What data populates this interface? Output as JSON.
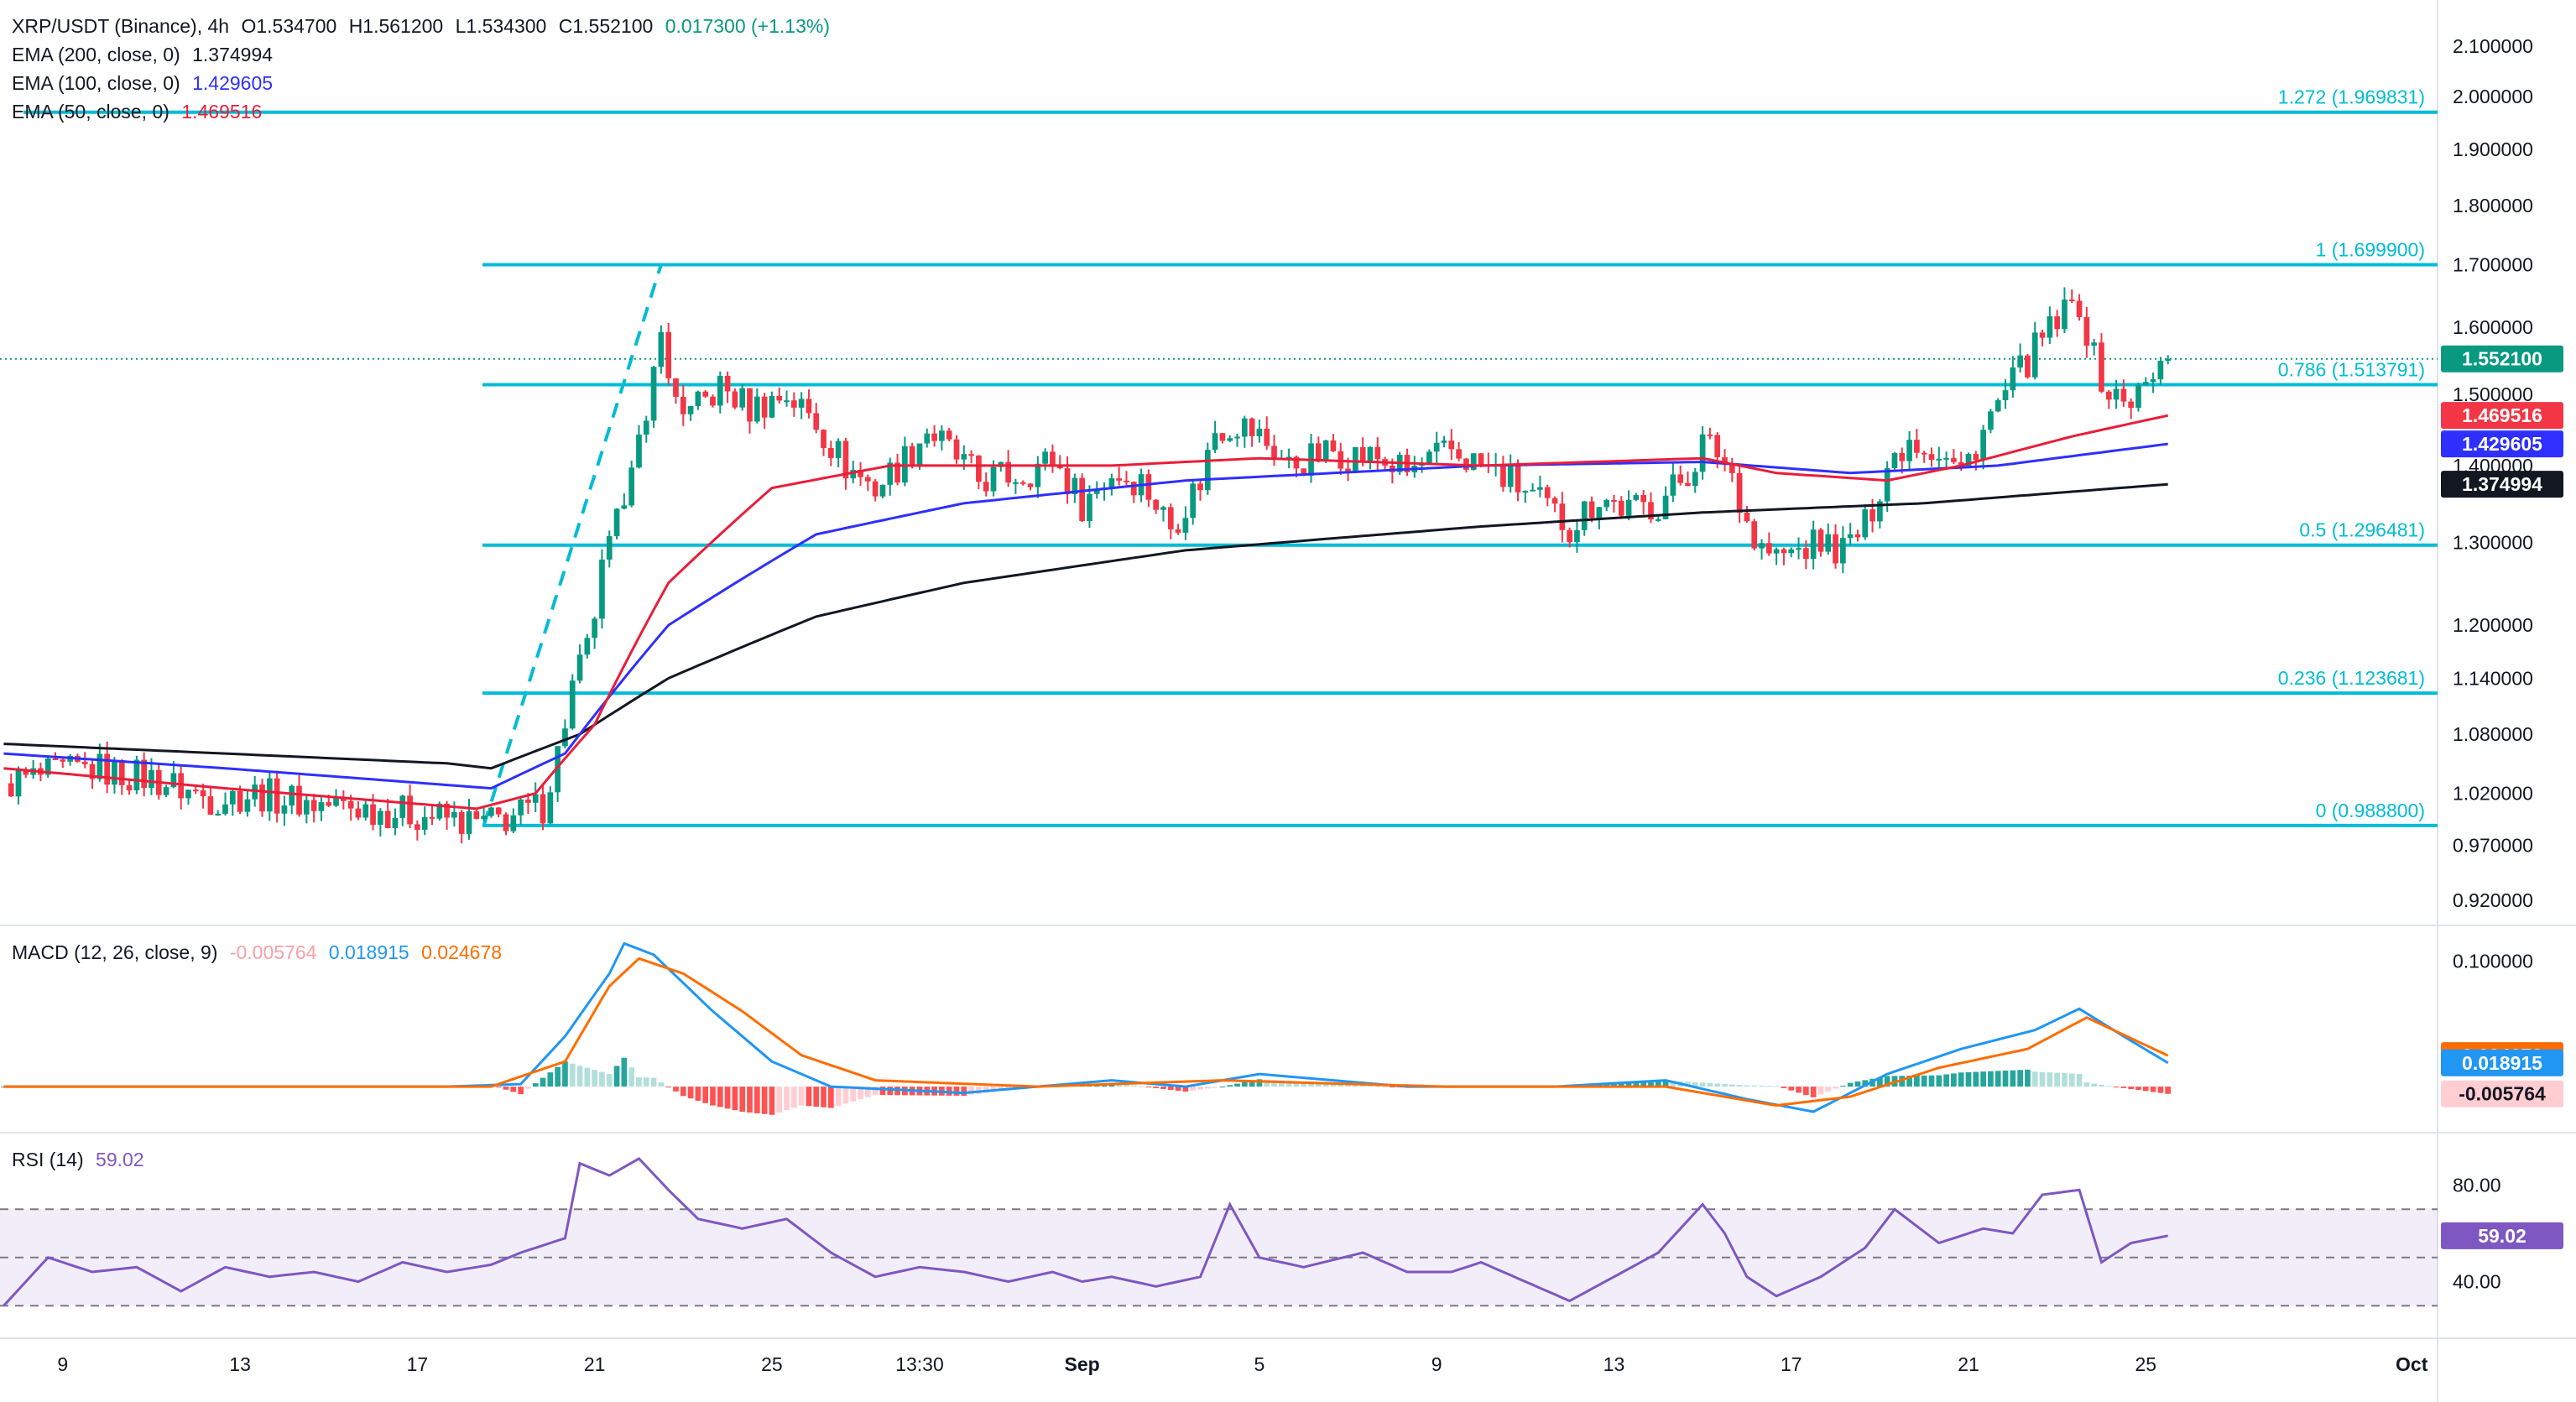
{
  "header": {
    "symbol": "XRP/USDT (Binance), 4h",
    "open": "O1.534700",
    "high": "H1.561200",
    "low": "L1.534300",
    "close": "C1.552100",
    "change": "0.017300 (+1.13%)"
  },
  "indicators": {
    "ema200": {
      "label": "EMA (200, close, 0)",
      "value": "1.374994",
      "color": "#131722"
    },
    "ema100": {
      "label": "EMA (100, close, 0)",
      "value": "1.429605",
      "color": "#2f2fff"
    },
    "ema50": {
      "label": "EMA (50, close, 0)",
      "value": "1.469516",
      "color": "#e91e3a"
    },
    "macd": {
      "label": "MACD (12, 26, close, 9)",
      "hist": "-0.005764",
      "macd": "0.018915",
      "signal": "0.024678"
    },
    "rsi": {
      "label": "RSI (14)",
      "value": "59.02"
    }
  },
  "colors": {
    "up": "#089981",
    "down": "#f23645",
    "fib": "#00bcd4",
    "ema200": "#131722",
    "ema100": "#2f2fff",
    "ema50": "#e91e3a",
    "macd": "#2196f3",
    "signal": "#ff6d00",
    "rsi": "#7e57c2",
    "hist_up": "#26a69a",
    "hist_up_light": "#b2dfdb",
    "hist_down": "#ff5252",
    "hist_down_light": "#ffcdd2"
  },
  "chart_data": {
    "type": "candlestick",
    "title": "XRP/USDT (Binance), 4h",
    "price_axis": {
      "ticks": [
        2.1,
        2.0,
        1.9,
        1.8,
        1.7,
        1.6,
        1.5,
        1.4,
        1.3,
        1.2,
        1.14,
        1.08,
        1.02,
        0.97,
        0.92
      ],
      "tick_labels": [
        "2.100000",
        "2.000000",
        "1.900000",
        "1.800000",
        "1.700000",
        "1.600000",
        "1.500000",
        "1.400000",
        "1.300000",
        "1.200000",
        "1.140000",
        "1.080000",
        "1.020000",
        "0.970000",
        "0.920000"
      ],
      "scale": "log",
      "range": [
        0.9,
        2.16
      ]
    },
    "time_axis": {
      "labels": [
        "9",
        "13",
        "17",
        "21",
        "25",
        "13:30",
        "Sep",
        "5",
        "9",
        "13",
        "17",
        "21",
        "25",
        "Oct"
      ],
      "label_bars": [
        8,
        32,
        56,
        80,
        104,
        124,
        146,
        170,
        194,
        218,
        242,
        266,
        290,
        326
      ],
      "total_bars": 330
    },
    "last_price": {
      "value": 1.5521,
      "label": "1.552100"
    },
    "fibonacci": [
      {
        "level": "1.272",
        "price": 1.969831,
        "label": "1.272 (1.969831)"
      },
      {
        "level": "1",
        "price": 1.6999,
        "label": "1 (1.699900)"
      },
      {
        "level": "0.786",
        "price": 1.513791,
        "label": "0.786 (1.513791)"
      },
      {
        "level": "0.5",
        "price": 1.296481,
        "label": "0.5 (1.296481)"
      },
      {
        "level": "0.236",
        "price": 1.123681,
        "label": "0.236 (1.123681)"
      },
      {
        "level": "0",
        "price": 0.9888,
        "label": "0 (0.988800)"
      }
    ],
    "trend_line": {
      "from": {
        "bar": 65,
        "price": 0.9888
      },
      "to": {
        "bar": 89,
        "price": 1.6999
      }
    },
    "price_path": [
      [
        0,
        1.03
      ],
      [
        8,
        1.04
      ],
      [
        12,
        1.045
      ],
      [
        20,
        1.035
      ],
      [
        28,
        1.015
      ],
      [
        34,
        1.02
      ],
      [
        42,
        1.01
      ],
      [
        50,
        1.005
      ],
      [
        58,
        0.998
      ],
      [
        64,
        0.99
      ],
      [
        66,
        0.992
      ],
      [
        70,
        1.0
      ],
      [
        73,
        1.008
      ],
      [
        75,
        1.06
      ],
      [
        77,
        1.13
      ],
      [
        79,
        1.17
      ],
      [
        81,
        1.26
      ],
      [
        83,
        1.32
      ],
      [
        85,
        1.42
      ],
      [
        87,
        1.44
      ],
      [
        89,
        1.62
      ],
      [
        90,
        1.51
      ],
      [
        93,
        1.47
      ],
      [
        97,
        1.51
      ],
      [
        101,
        1.48
      ],
      [
        106,
        1.5
      ],
      [
        110,
        1.46
      ],
      [
        114,
        1.4
      ],
      [
        118,
        1.37
      ],
      [
        122,
        1.41
      ],
      [
        125,
        1.45
      ],
      [
        128,
        1.42
      ],
      [
        132,
        1.38
      ],
      [
        138,
        1.39
      ],
      [
        142,
        1.41
      ],
      [
        146,
        1.35
      ],
      [
        150,
        1.39
      ],
      [
        154,
        1.38
      ],
      [
        158,
        1.32
      ],
      [
        162,
        1.38
      ],
      [
        164,
        1.45
      ],
      [
        167,
        1.46
      ],
      [
        170,
        1.44
      ],
      [
        174,
        1.4
      ],
      [
        180,
        1.42
      ],
      [
        186,
        1.41
      ],
      [
        190,
        1.39
      ],
      [
        196,
        1.42
      ],
      [
        200,
        1.4
      ],
      [
        204,
        1.38
      ],
      [
        208,
        1.35
      ],
      [
        212,
        1.32
      ],
      [
        216,
        1.36
      ],
      [
        220,
        1.34
      ],
      [
        224,
        1.35
      ],
      [
        228,
        1.39
      ],
      [
        230,
        1.43
      ],
      [
        232,
        1.42
      ],
      [
        234,
        1.39
      ],
      [
        237,
        1.3
      ],
      [
        240,
        1.28
      ],
      [
        243,
        1.29
      ],
      [
        246,
        1.3
      ],
      [
        249,
        1.29
      ],
      [
        252,
        1.32
      ],
      [
        255,
        1.4
      ],
      [
        258,
        1.44
      ],
      [
        262,
        1.42
      ],
      [
        265,
        1.39
      ],
      [
        268,
        1.45
      ],
      [
        271,
        1.5
      ],
      [
        274,
        1.55
      ],
      [
        276,
        1.58
      ],
      [
        279,
        1.62
      ],
      [
        281,
        1.64
      ],
      [
        283,
        1.55
      ],
      [
        285,
        1.5
      ],
      [
        287,
        1.49
      ],
      [
        289,
        1.5
      ],
      [
        291,
        1.52
      ],
      [
        293,
        1.552
      ]
    ],
    "ema_paths": {
      "ema200": [
        [
          0,
          1.07
        ],
        [
          30,
          1.06
        ],
        [
          60,
          1.05
        ],
        [
          66,
          1.045
        ],
        [
          78,
          1.08
        ],
        [
          90,
          1.14
        ],
        [
          110,
          1.21
        ],
        [
          130,
          1.25
        ],
        [
          160,
          1.29
        ],
        [
          200,
          1.32
        ],
        [
          230,
          1.338
        ],
        [
          260,
          1.35
        ],
        [
          293,
          1.374994
        ]
      ],
      "ema100": [
        [
          0,
          1.06
        ],
        [
          30,
          1.045
        ],
        [
          66,
          1.025
        ],
        [
          76,
          1.06
        ],
        [
          90,
          1.2
        ],
        [
          110,
          1.31
        ],
        [
          130,
          1.35
        ],
        [
          160,
          1.38
        ],
        [
          200,
          1.4
        ],
        [
          230,
          1.405
        ],
        [
          250,
          1.39
        ],
        [
          270,
          1.4
        ],
        [
          293,
          1.429605
        ]
      ],
      "ema50": [
        [
          0,
          1.045
        ],
        [
          30,
          1.025
        ],
        [
          64,
          1.005
        ],
        [
          72,
          1.02
        ],
        [
          80,
          1.09
        ],
        [
          90,
          1.25
        ],
        [
          104,
          1.37
        ],
        [
          120,
          1.4
        ],
        [
          150,
          1.4
        ],
        [
          170,
          1.41
        ],
        [
          200,
          1.4
        ],
        [
          230,
          1.41
        ],
        [
          240,
          1.39
        ],
        [
          255,
          1.38
        ],
        [
          265,
          1.4
        ],
        [
          280,
          1.44
        ],
        [
          293,
          1.469516
        ]
      ]
    },
    "macd": {
      "ticks": [
        0.1
      ],
      "tick_labels": [
        "0.100000"
      ],
      "range": [
        -0.03,
        0.125
      ],
      "macd_path": [
        [
          0,
          0.0
        ],
        [
          60,
          0.0
        ],
        [
          70,
          0.002
        ],
        [
          76,
          0.04
        ],
        [
          82,
          0.09
        ],
        [
          84,
          0.114
        ],
        [
          88,
          0.105
        ],
        [
          96,
          0.06
        ],
        [
          104,
          0.02
        ],
        [
          112,
          0.0
        ],
        [
          130,
          -0.005
        ],
        [
          150,
          0.005
        ],
        [
          160,
          0.0
        ],
        [
          170,
          0.01
        ],
        [
          190,
          0.0
        ],
        [
          210,
          0.0
        ],
        [
          225,
          0.005
        ],
        [
          236,
          -0.01
        ],
        [
          245,
          -0.02
        ],
        [
          255,
          0.01
        ],
        [
          265,
          0.03
        ],
        [
          275,
          0.045
        ],
        [
          281,
          0.062
        ],
        [
          287,
          0.04
        ],
        [
          293,
          0.018915
        ]
      ],
      "signal_path": [
        [
          0,
          0.0
        ],
        [
          66,
          0.0
        ],
        [
          76,
          0.02
        ],
        [
          82,
          0.08
        ],
        [
          86,
          0.102
        ],
        [
          92,
          0.09
        ],
        [
          100,
          0.06
        ],
        [
          108,
          0.025
        ],
        [
          118,
          0.005
        ],
        [
          140,
          0.0
        ],
        [
          165,
          0.005
        ],
        [
          195,
          0.0
        ],
        [
          225,
          0.0
        ],
        [
          240,
          -0.015
        ],
        [
          250,
          -0.008
        ],
        [
          262,
          0.015
        ],
        [
          274,
          0.03
        ],
        [
          282,
          0.055
        ],
        [
          293,
          0.024678
        ]
      ],
      "hist_label": "-0.005764",
      "macd_label": "0.018915",
      "signal_label": "0.024678"
    },
    "rsi": {
      "ticks": [
        80,
        40
      ],
      "tick_labels": [
        "80.00",
        "40.00"
      ],
      "bands": [
        70,
        50,
        30
      ],
      "range": [
        20,
        100
      ],
      "path": [
        [
          0,
          30
        ],
        [
          6,
          50
        ],
        [
          12,
          44
        ],
        [
          18,
          46
        ],
        [
          24,
          36
        ],
        [
          30,
          46
        ],
        [
          36,
          42
        ],
        [
          42,
          44
        ],
        [
          48,
          40
        ],
        [
          54,
          48
        ],
        [
          60,
          44
        ],
        [
          66,
          47
        ],
        [
          70,
          52
        ],
        [
          76,
          58
        ],
        [
          78,
          89
        ],
        [
          82,
          84
        ],
        [
          86,
          91
        ],
        [
          90,
          78
        ],
        [
          94,
          66
        ],
        [
          100,
          62
        ],
        [
          106,
          66
        ],
        [
          112,
          52
        ],
        [
          118,
          42
        ],
        [
          124,
          46
        ],
        [
          130,
          44
        ],
        [
          136,
          40
        ],
        [
          142,
          44
        ],
        [
          146,
          40
        ],
        [
          150,
          42
        ],
        [
          156,
          38
        ],
        [
          162,
          42
        ],
        [
          166,
          72
        ],
        [
          170,
          50
        ],
        [
          176,
          46
        ],
        [
          184,
          52
        ],
        [
          190,
          44
        ],
        [
          196,
          44
        ],
        [
          200,
          48
        ],
        [
          206,
          40
        ],
        [
          212,
          32
        ],
        [
          218,
          42
        ],
        [
          224,
          52
        ],
        [
          230,
          72
        ],
        [
          233,
          60
        ],
        [
          236,
          42
        ],
        [
          240,
          34
        ],
        [
          246,
          42
        ],
        [
          252,
          54
        ],
        [
          256,
          70
        ],
        [
          262,
          56
        ],
        [
          268,
          62
        ],
        [
          272,
          60
        ],
        [
          276,
          76
        ],
        [
          281,
          78
        ],
        [
          284,
          48
        ],
        [
          288,
          56
        ],
        [
          293,
          59.02
        ]
      ],
      "value_label": "59.02"
    }
  }
}
